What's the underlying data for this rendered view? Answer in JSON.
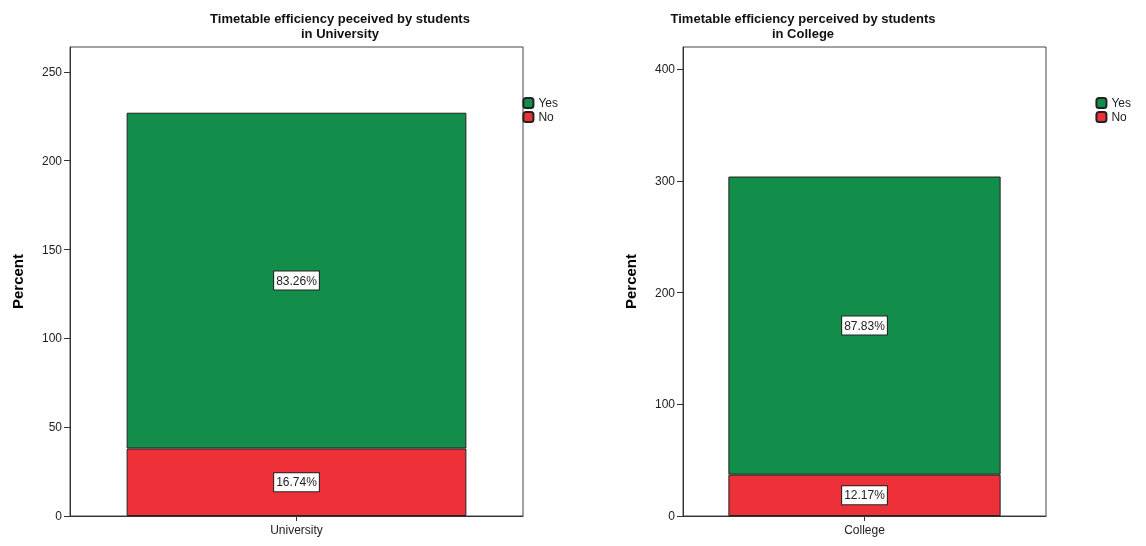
{
  "chart_data": [
    {
      "type": "bar",
      "title": "Timetable efficiency peceived by students\nin University",
      "ylabel": "Percent",
      "categories": [
        "University"
      ],
      "stacked": true,
      "ylim": [
        0,
        264
      ],
      "yticks": [
        0,
        50,
        100,
        150,
        200,
        250
      ],
      "grid": false,
      "legend": "top right",
      "series": [
        {
          "name": "No",
          "color": "#ee3138",
          "values": [
            38
          ]
        },
        {
          "name": "Yes",
          "color": "#138e4a",
          "values": [
            189
          ]
        }
      ],
      "annotations": [
        "16.74%",
        "83.26%"
      ]
    },
    {
      "type": "bar",
      "title": "Timetable efficiency perceived by students\nin College",
      "ylabel": "Percent",
      "categories": [
        "College"
      ],
      "stacked": true,
      "ylim": [
        0,
        420
      ],
      "yticks": [
        0,
        100,
        200,
        300,
        400
      ],
      "grid": false,
      "legend": "top right",
      "series": [
        {
          "name": "No",
          "color": "#ee3138",
          "values": [
            37
          ]
        },
        {
          "name": "Yes",
          "color": "#138e4a",
          "values": [
            267
          ]
        }
      ],
      "annotations": [
        "12.17%",
        "87.83%"
      ]
    }
  ]
}
